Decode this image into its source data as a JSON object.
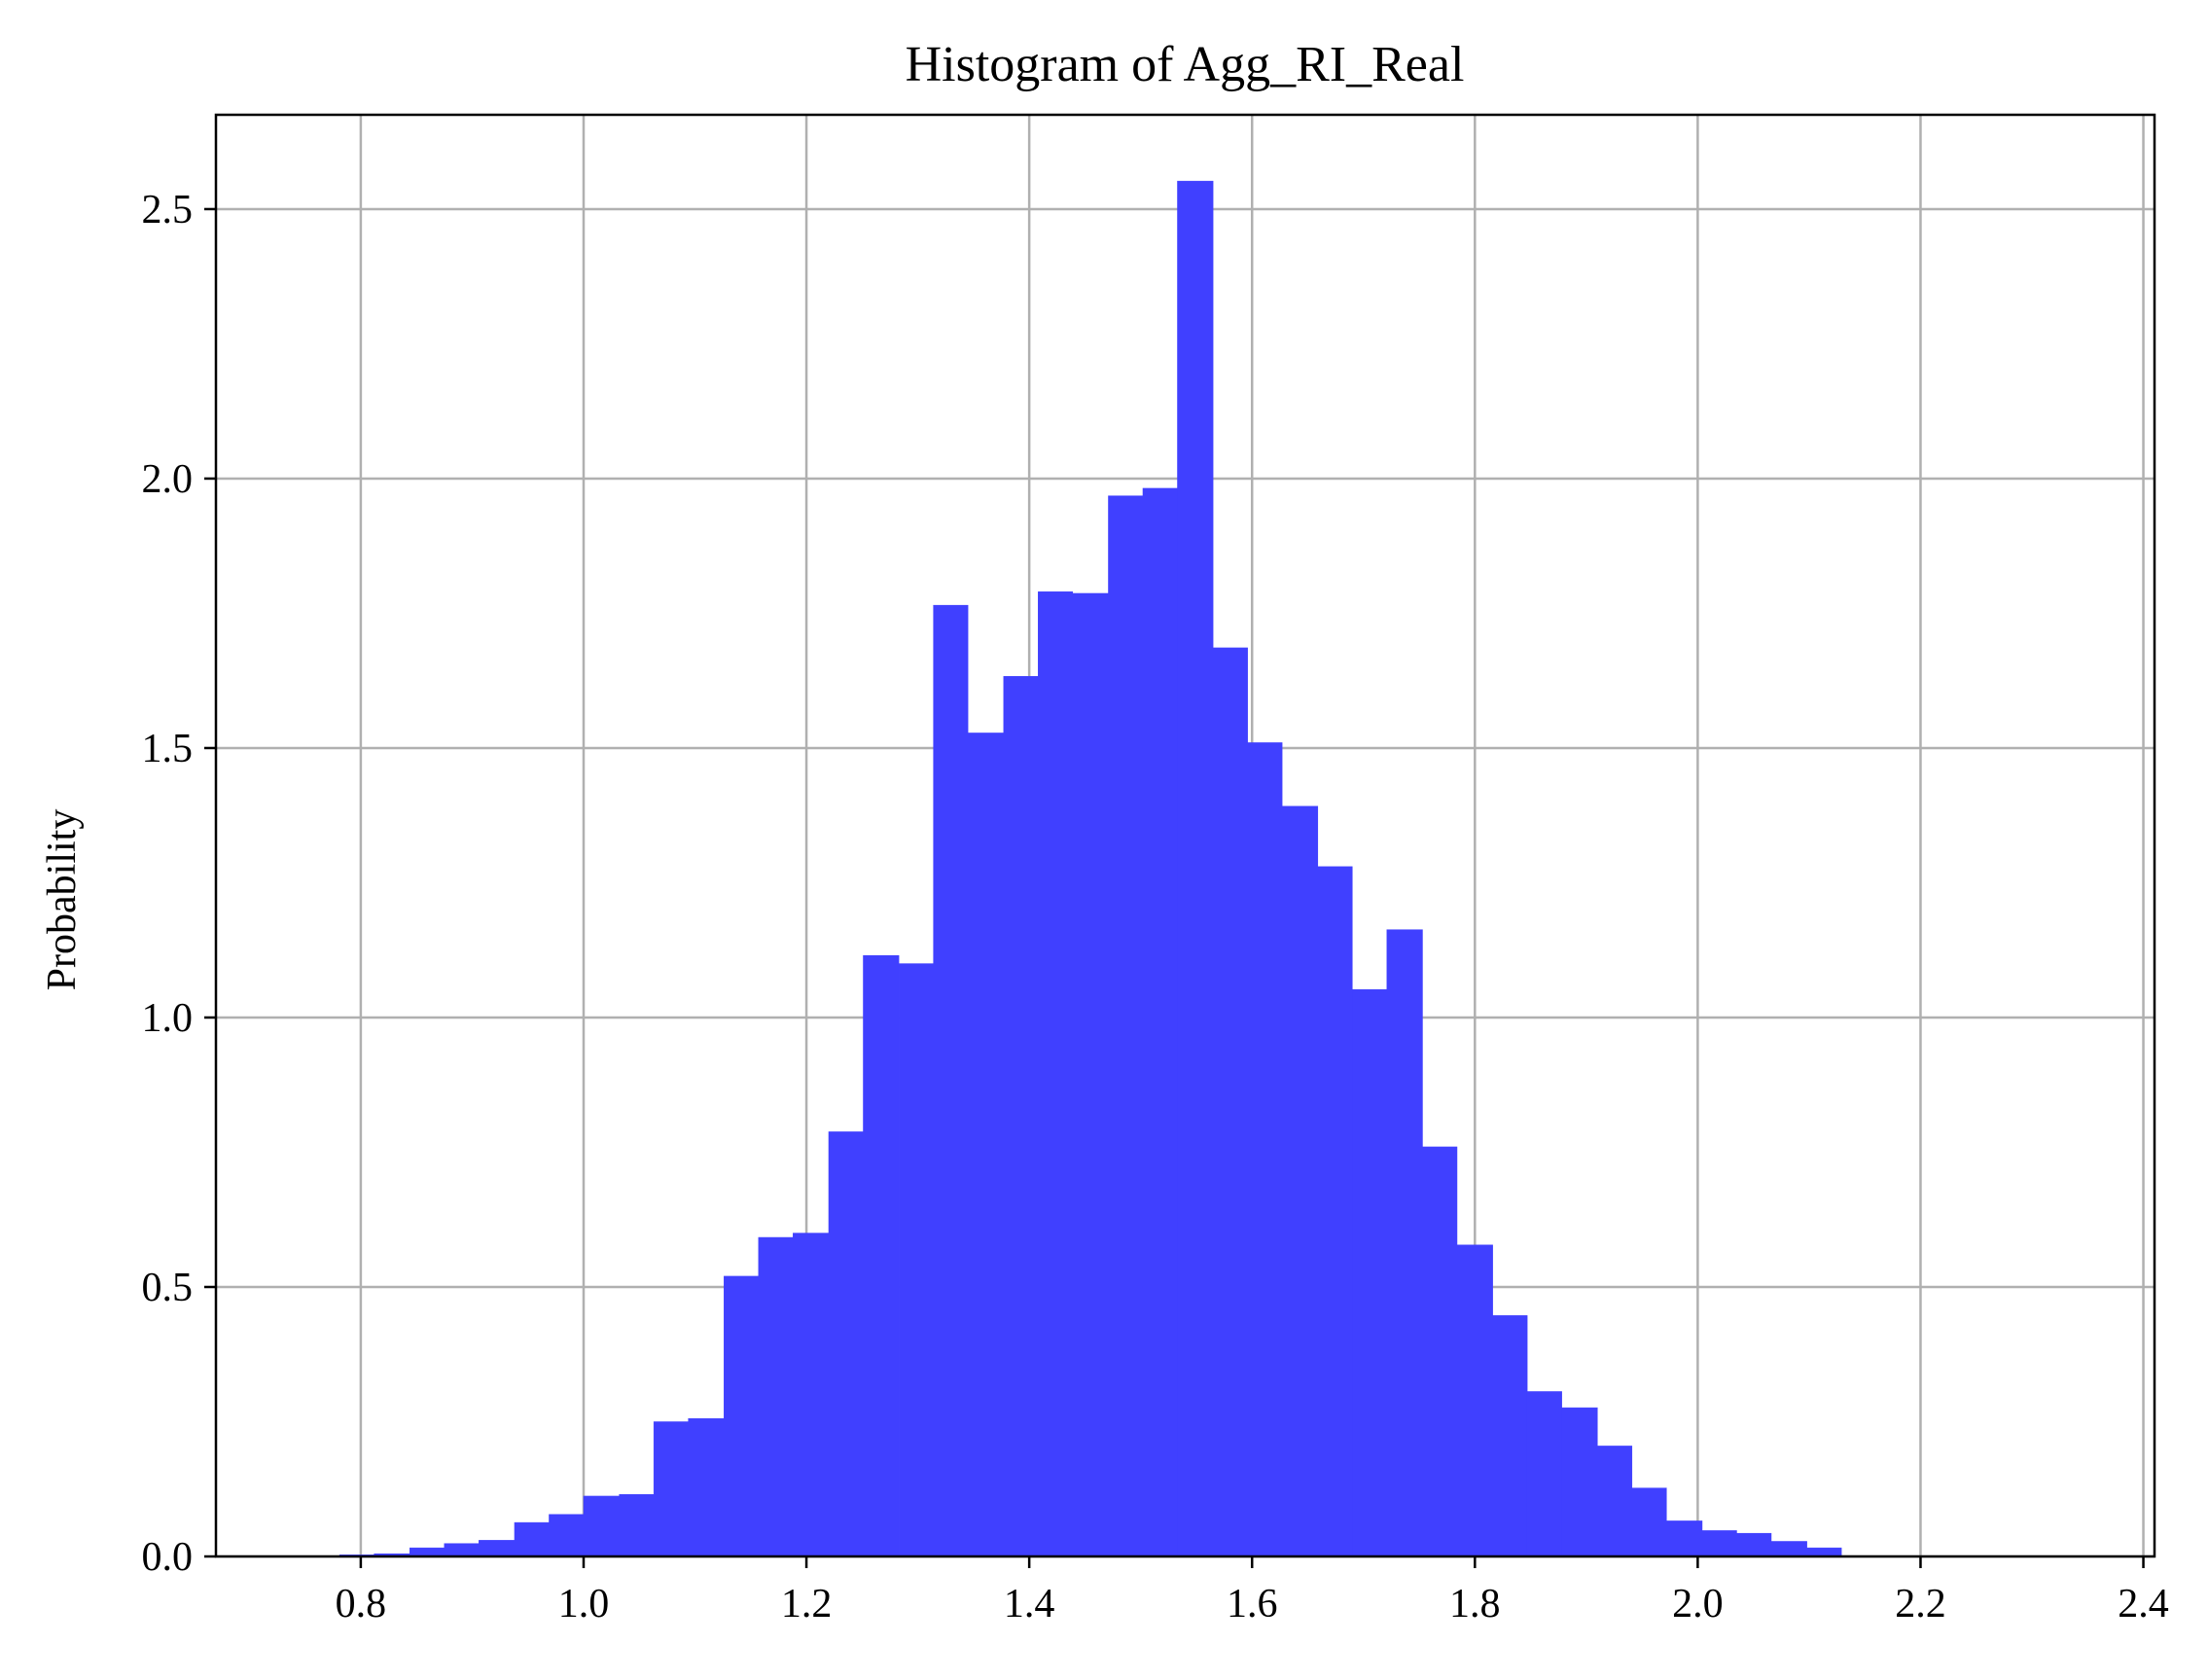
{
  "chart_data": {
    "type": "bar",
    "title": "Histogram of Agg_RI_Real",
    "xlabel": "",
    "ylabel": "Probability",
    "xlim": [
      0.67,
      2.41
    ],
    "ylim": [
      0,
      2.675
    ],
    "x_ticks": [
      0.8,
      1.0,
      1.2,
      1.4,
      1.6,
      1.8,
      2.0,
      2.2,
      2.4
    ],
    "x_tick_labels": [
      "0.8",
      "1.0",
      "1.2",
      "1.4",
      "1.6",
      "1.8",
      "2.0",
      "2.2",
      "2.4"
    ],
    "y_ticks": [
      0,
      0.5,
      1.0,
      1.5,
      2.0,
      2.5
    ],
    "y_tick_labels": [
      "0.0",
      "0.5",
      "1.0",
      "1.5",
      "2.0",
      "2.5"
    ],
    "grid": true,
    "bar_color": "#4040ff",
    "bin_edges": [
      0.781,
      0.812,
      0.844,
      0.875,
      0.906,
      0.938,
      0.969,
      1.0,
      1.032,
      1.063,
      1.094,
      1.126,
      1.157,
      1.188,
      1.22,
      1.251,
      1.283,
      1.314,
      1.345,
      1.377,
      1.408,
      1.439,
      1.471,
      1.502,
      1.533,
      1.565,
      1.596,
      1.627,
      1.659,
      1.69,
      1.721,
      1.753,
      1.784,
      1.816,
      1.847,
      1.878,
      1.91,
      1.941,
      1.972,
      2.004,
      2.035,
      2.066,
      2.098,
      2.129
    ],
    "values": [
      0.003,
      0.005,
      0.016,
      0.024,
      0.03,
      0.063,
      0.078,
      0.112,
      0.115,
      0.25,
      0.256,
      0.52,
      0.592,
      0.6,
      0.788,
      1.115,
      1.1,
      1.765,
      1.528,
      1.633,
      1.79,
      1.787,
      1.968,
      1.982,
      2.552,
      1.686,
      1.51,
      1.392,
      1.28,
      1.052,
      1.163,
      0.76,
      0.578,
      0.447,
      0.306,
      0.276,
      0.205,
      0.127,
      0.066,
      0.048,
      0.043,
      0.028,
      0.016
    ]
  }
}
